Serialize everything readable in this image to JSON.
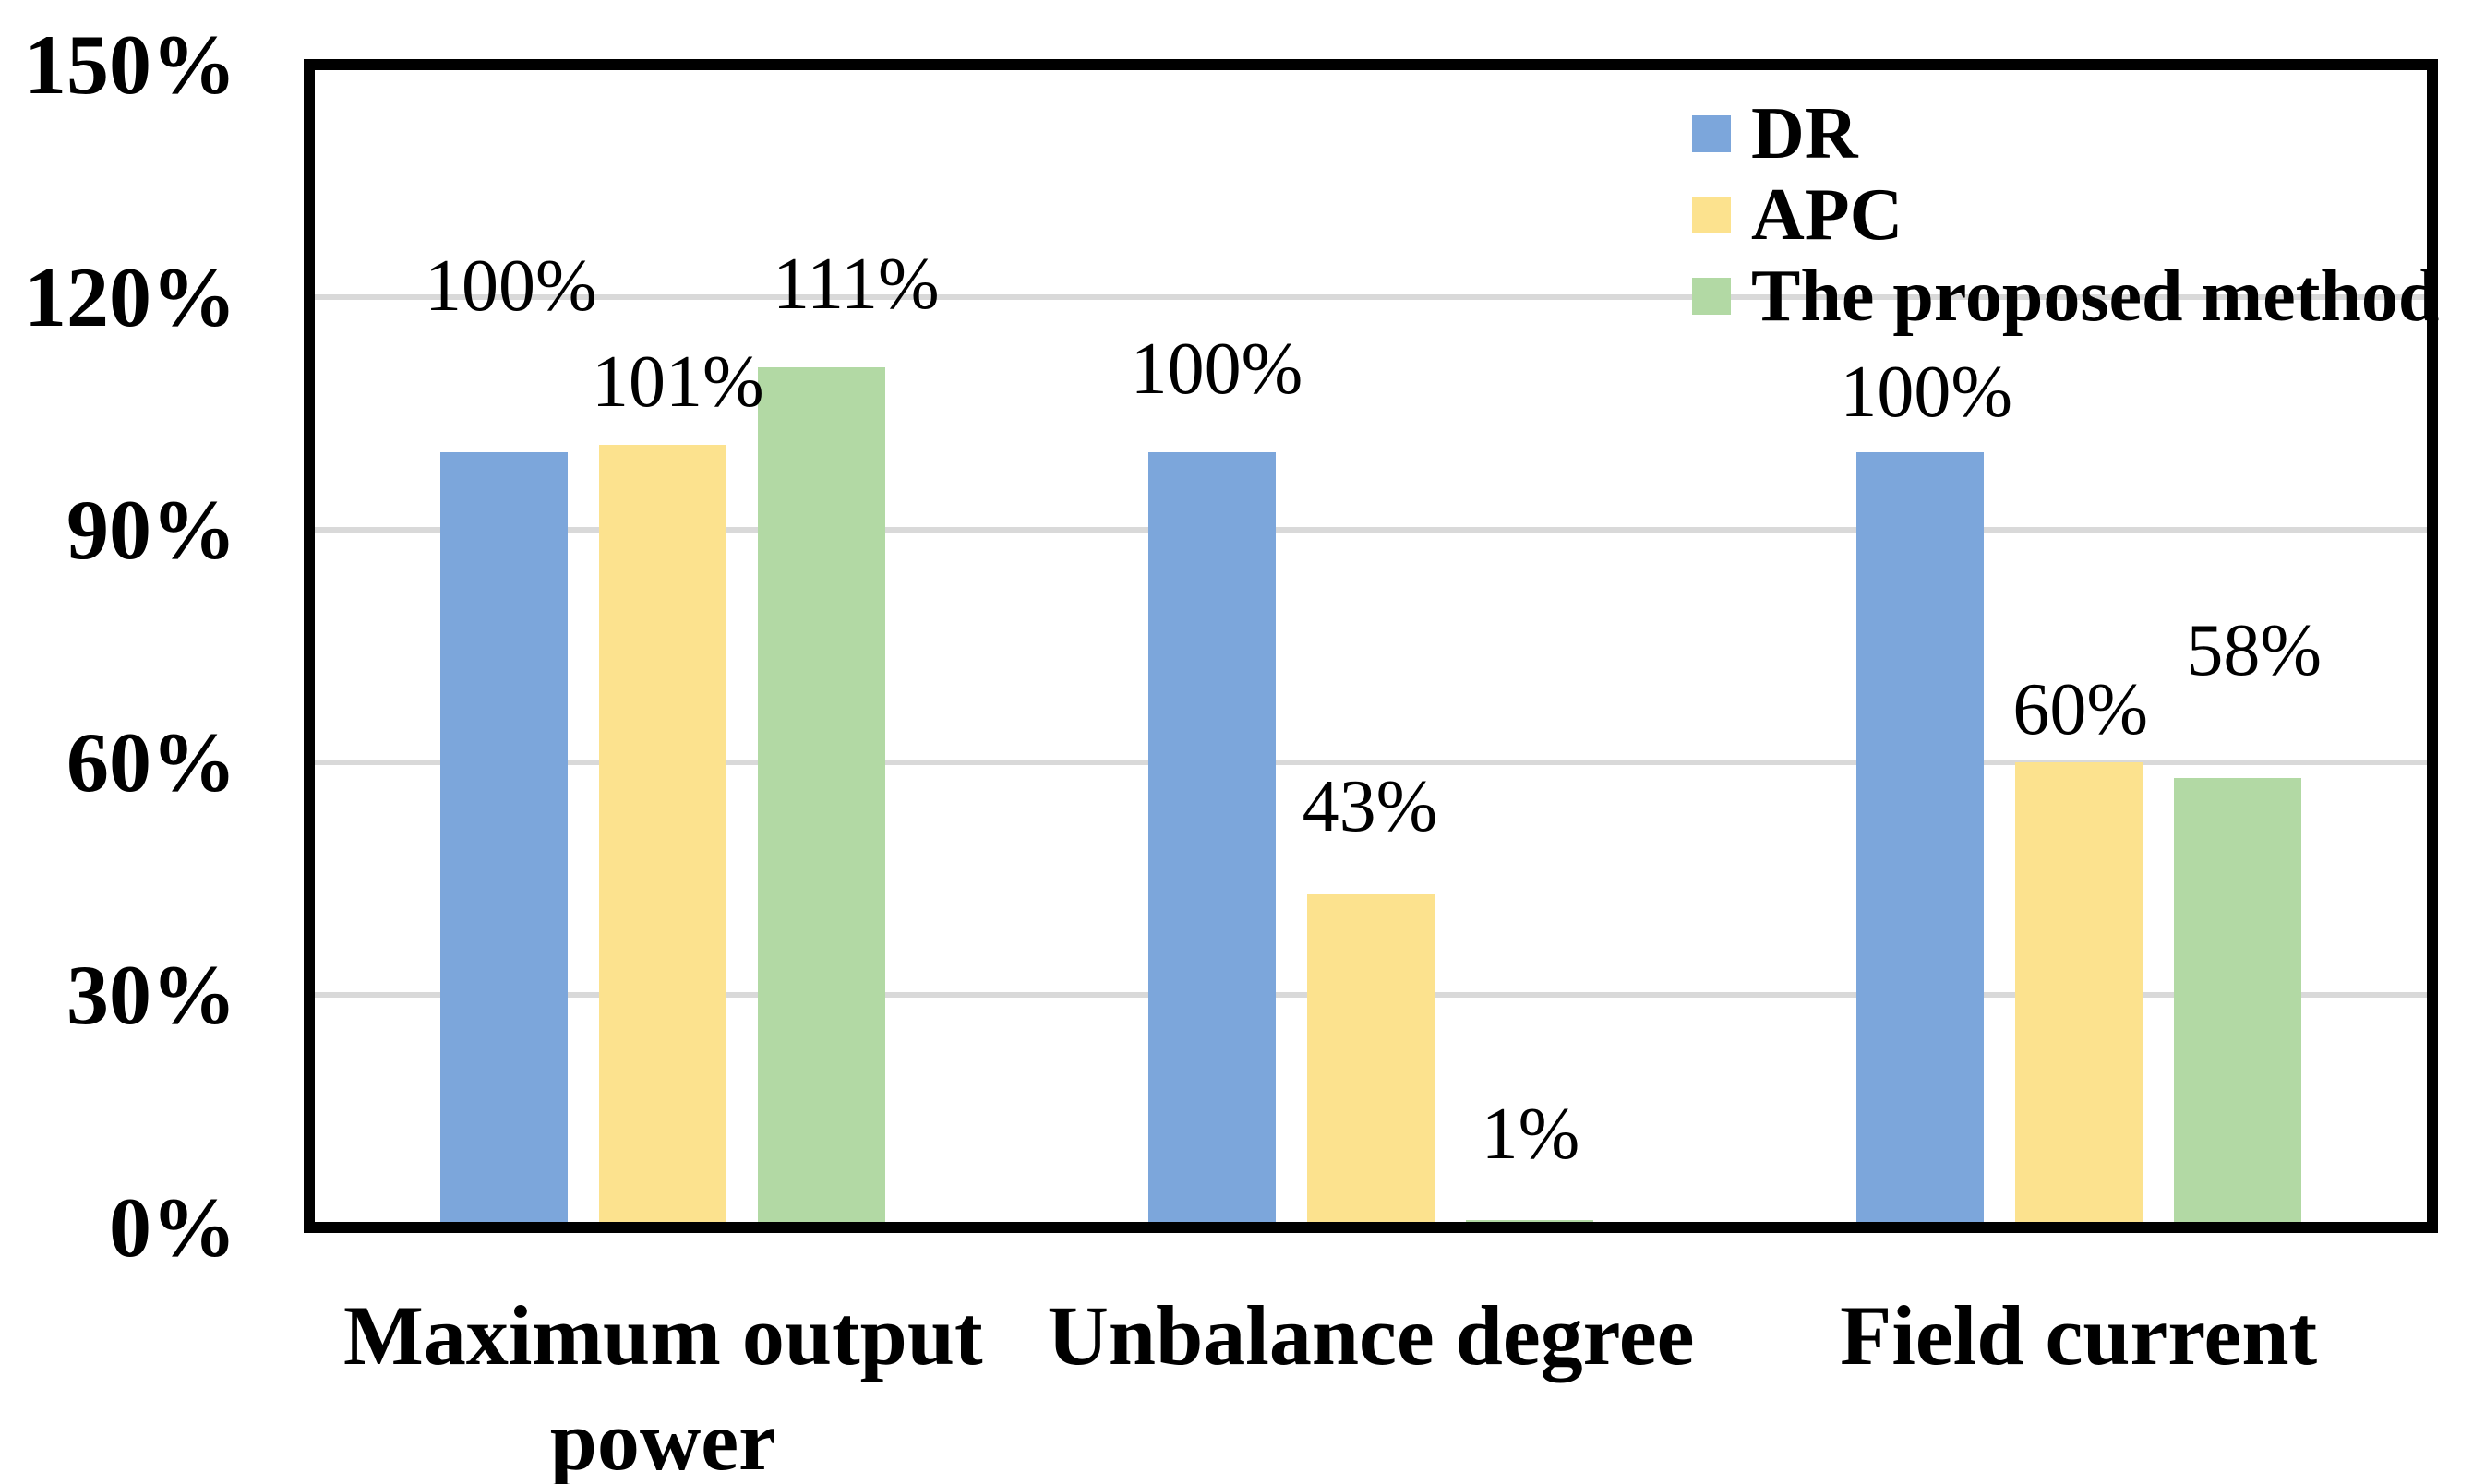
{
  "chart_data": {
    "type": "bar",
    "title": "",
    "categories": [
      "Maximum output power",
      "Unbalance degree",
      "Field current"
    ],
    "series": [
      {
        "name": "DR",
        "color": "#7CA6DB",
        "values": [
          100,
          100,
          100
        ],
        "data_labels": [
          "100%",
          "100%",
          "100%"
        ]
      },
      {
        "name": "APC",
        "color": "#FCE28E",
        "values": [
          101,
          43,
          60
        ],
        "data_labels": [
          "101%",
          "43%",
          "60%"
        ]
      },
      {
        "name": "The proposed method",
        "color": "#B2D9A4",
        "values": [
          111,
          1,
          58
        ],
        "data_labels": [
          "111%",
          "1%",
          "58%"
        ]
      }
    ],
    "xlabel": "",
    "ylabel": "",
    "ylim": [
      0,
      150
    ],
    "ytick_step": 30,
    "ytick_labels": [
      "0%",
      "30%",
      "60%",
      "90%",
      "120%",
      "150%"
    ],
    "grid": true,
    "gridline_color": "#D9D9D9",
    "axis_color": "#000000",
    "background_color": "#FFFFFF",
    "legend_position": "top-right-inside",
    "label_layout": {
      "gap_above_bar": [
        [
          140,
          50,
          25
        ],
        [
          28,
          55,
          17
        ],
        [
          50,
          53,
          98
        ]
      ],
      "dx": [
        [
          7,
          5,
          7
        ],
        [
          16,
          -1,
          2
        ],
        [
          37,
          1,
          18
        ]
      ]
    }
  }
}
